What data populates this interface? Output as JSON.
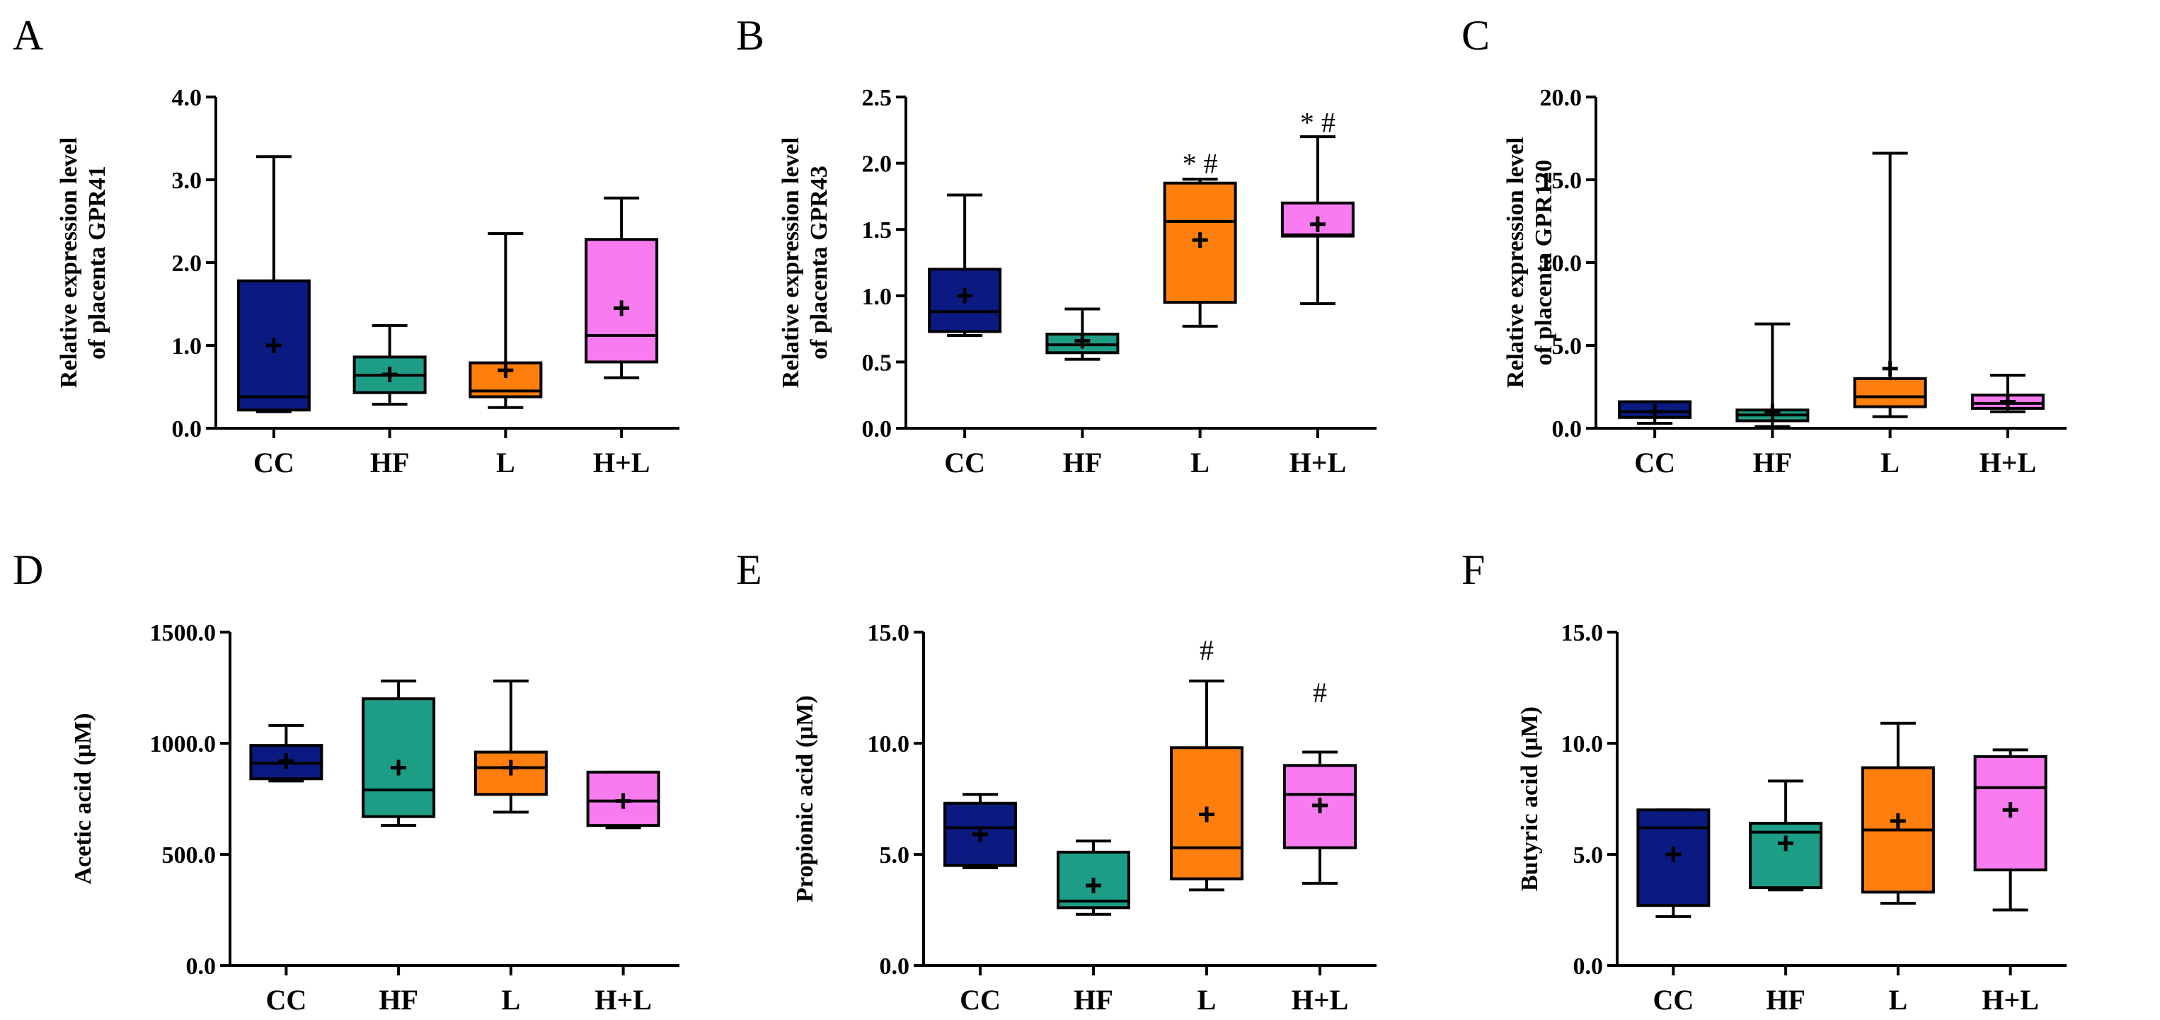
{
  "figure_title": "",
  "colors": {
    "CC": "#0b1a80",
    "HF": "#1e9d86",
    "L": "#ff7f0e",
    "H+L": "#f97bf0"
  },
  "chart_data": [
    {
      "panel": "A",
      "type": "box",
      "categories": [
        "CC",
        "HF",
        "L",
        "H+L"
      ],
      "ylabel_line1": "Relative expression level",
      "ylabel_line2": "of placenta GPR41",
      "ylim": [
        0,
        4
      ],
      "yticks": [
        0,
        1,
        2,
        3,
        4
      ],
      "ytick_labels": [
        "0.0",
        "1.0",
        "2.0",
        "3.0",
        "4.0"
      ],
      "boxes": [
        {
          "group": "CC",
          "min": 0.2,
          "q1": 0.22,
          "median": 0.38,
          "q3": 1.78,
          "max": 3.28,
          "mean": 1.0
        },
        {
          "group": "HF",
          "min": 0.29,
          "q1": 0.43,
          "median": 0.64,
          "q3": 0.86,
          "max": 1.24,
          "mean": 0.65
        },
        {
          "group": "L",
          "min": 0.25,
          "q1": 0.38,
          "median": 0.45,
          "q3": 0.79,
          "max": 2.35,
          "mean": 0.7
        },
        {
          "group": "H+L",
          "min": 0.61,
          "q1": 0.8,
          "median": 1.12,
          "q3": 2.28,
          "max": 2.78,
          "mean": 1.45
        }
      ],
      "annotations": []
    },
    {
      "panel": "B",
      "type": "box",
      "categories": [
        "CC",
        "HF",
        "L",
        "H+L"
      ],
      "ylabel_line1": "Relative expression level",
      "ylabel_line2": "of placenta GPR43",
      "ylim": [
        0,
        2.5
      ],
      "yticks": [
        0,
        0.5,
        1,
        1.5,
        2,
        2.5
      ],
      "ytick_labels": [
        "0.0",
        "0.5",
        "1.0",
        "1.5",
        "2.0",
        "2.5"
      ],
      "boxes": [
        {
          "group": "CC",
          "min": 0.7,
          "q1": 0.73,
          "median": 0.88,
          "q3": 1.2,
          "max": 1.76,
          "mean": 1.0
        },
        {
          "group": "HF",
          "min": 0.52,
          "q1": 0.57,
          "median": 0.63,
          "q3": 0.71,
          "max": 0.9,
          "mean": 0.66
        },
        {
          "group": "L",
          "min": 0.77,
          "q1": 0.95,
          "median": 1.56,
          "q3": 1.85,
          "max": 1.88,
          "mean": 1.42
        },
        {
          "group": "H+L",
          "min": 0.94,
          "q1": 1.45,
          "median": 1.46,
          "q3": 1.7,
          "max": 2.2,
          "mean": 1.54
        }
      ],
      "annotations": [
        {
          "group": "L",
          "text": "* #",
          "y": 2.0
        },
        {
          "group": "H+L",
          "text": "* #",
          "y": 2.31
        }
      ]
    },
    {
      "panel": "C",
      "type": "box",
      "categories": [
        "CC",
        "HF",
        "L",
        "H+L"
      ],
      "ylabel_line1": "Relative expression level",
      "ylabel_line2": "of placenta GPR120",
      "ylim": [
        0,
        20
      ],
      "yticks": [
        0,
        5,
        10,
        15,
        20
      ],
      "ytick_labels": [
        "0.0",
        "5.0",
        "10.0",
        "15.0",
        "20.0"
      ],
      "boxes": [
        {
          "group": "CC",
          "min": 0.3,
          "q1": 0.65,
          "median": 1.0,
          "q3": 1.6,
          "max": 1.6,
          "mean": 1.0
        },
        {
          "group": "HF",
          "min": 0.1,
          "q1": 0.45,
          "median": 0.8,
          "q3": 1.1,
          "max": 6.3,
          "mean": 1.0
        },
        {
          "group": "L",
          "min": 0.7,
          "q1": 1.3,
          "median": 1.9,
          "q3": 3.0,
          "max": 16.6,
          "mean": 3.6
        },
        {
          "group": "H+L",
          "min": 1.0,
          "q1": 1.2,
          "median": 1.5,
          "q3": 2.0,
          "max": 3.2,
          "mean": 1.6
        }
      ],
      "annotations": []
    },
    {
      "panel": "D",
      "type": "box",
      "categories": [
        "CC",
        "HF",
        "L",
        "H+L"
      ],
      "ylabel_line1": "Acetic acid (μM)",
      "ylabel_line2": "",
      "ylim": [
        0,
        1500
      ],
      "yticks": [
        0,
        500,
        1000,
        1500
      ],
      "ytick_labels": [
        "0.0",
        "500.0",
        "1000.0",
        "1500.0"
      ],
      "boxes": [
        {
          "group": "CC",
          "min": 830,
          "q1": 840,
          "median": 910,
          "q3": 990,
          "max": 1080,
          "mean": 920
        },
        {
          "group": "HF",
          "min": 630,
          "q1": 670,
          "median": 790,
          "q3": 1200,
          "max": 1280,
          "mean": 890
        },
        {
          "group": "L",
          "min": 690,
          "q1": 770,
          "median": 890,
          "q3": 960,
          "max": 1280,
          "mean": 890
        },
        {
          "group": "H+L",
          "min": 620,
          "q1": 630,
          "median": 740,
          "q3": 870,
          "max": 870,
          "mean": 740
        }
      ],
      "annotations": []
    },
    {
      "panel": "E",
      "type": "box",
      "categories": [
        "CC",
        "HF",
        "L",
        "H+L"
      ],
      "ylabel_line1": "Propionic acid (μM)",
      "ylabel_line2": "",
      "ylim": [
        0,
        15
      ],
      "yticks": [
        0,
        5,
        10,
        15
      ],
      "ytick_labels": [
        "0.0",
        "5.0",
        "10.0",
        "15.0"
      ],
      "boxes": [
        {
          "group": "CC",
          "min": 4.4,
          "q1": 4.5,
          "median": 6.2,
          "q3": 7.3,
          "max": 7.7,
          "mean": 5.9
        },
        {
          "group": "HF",
          "min": 2.3,
          "q1": 2.6,
          "median": 2.9,
          "q3": 5.1,
          "max": 5.6,
          "mean": 3.6
        },
        {
          "group": "L",
          "min": 3.4,
          "q1": 3.9,
          "median": 5.3,
          "q3": 9.8,
          "max": 12.8,
          "mean": 6.8
        },
        {
          "group": "H+L",
          "min": 3.7,
          "q1": 5.3,
          "median": 7.7,
          "q3": 9.0,
          "max": 9.6,
          "mean": 7.2
        }
      ],
      "annotations": [
        {
          "group": "L",
          "text": "#",
          "y": 14.2
        },
        {
          "group": "H+L",
          "text": "#",
          "y": 12.3
        }
      ]
    },
    {
      "panel": "F",
      "type": "box",
      "categories": [
        "CC",
        "HF",
        "L",
        "H+L"
      ],
      "ylabel_line1": "Butyric acid (μM)",
      "ylabel_line2": "",
      "ylim": [
        0,
        15
      ],
      "yticks": [
        0,
        5,
        10,
        15
      ],
      "ytick_labels": [
        "0.0",
        "5.0",
        "10.0",
        "15.0"
      ],
      "boxes": [
        {
          "group": "CC",
          "min": 2.2,
          "q1": 2.7,
          "median": 6.2,
          "q3": 7.0,
          "max": 7.0,
          "mean": 5.0
        },
        {
          "group": "HF",
          "min": 3.4,
          "q1": 3.5,
          "median": 6.0,
          "q3": 6.4,
          "max": 8.3,
          "mean": 5.5
        },
        {
          "group": "L",
          "min": 2.8,
          "q1": 3.3,
          "median": 6.1,
          "q3": 8.9,
          "max": 10.9,
          "mean": 6.5
        },
        {
          "group": "H+L",
          "min": 2.5,
          "q1": 4.3,
          "median": 8.0,
          "q3": 9.4,
          "max": 9.7,
          "mean": 7.0
        }
      ],
      "annotations": []
    }
  ]
}
